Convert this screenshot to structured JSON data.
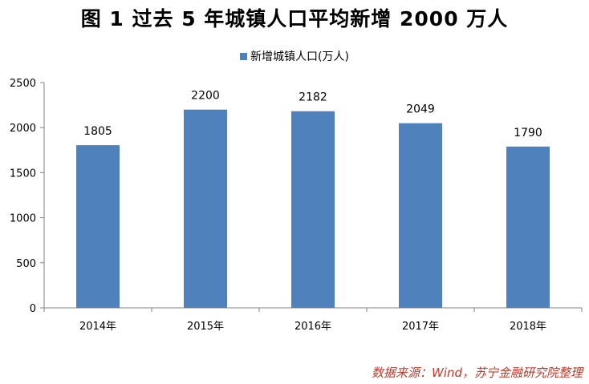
{
  "title": "图 1  过去 5 年城镇人口平均新增 2000 万人",
  "source": "数据来源：Wind，苏宁金融研究院整理",
  "colors": {
    "bar": "#4F81BD",
    "axis": "#808080",
    "source_text": "#C0392B"
  },
  "chart_data": {
    "type": "bar",
    "categories": [
      "2014年",
      "2015年",
      "2016年",
      "2017年",
      "2018年"
    ],
    "series": [
      {
        "name": "新增城镇人口(万人)",
        "values": [
          1805,
          2200,
          2182,
          2049,
          1790
        ]
      }
    ],
    "ylim": [
      0,
      2500
    ],
    "yticks": [
      0,
      500,
      1000,
      1500,
      2000,
      2500
    ],
    "grid": false,
    "legend_position": "top-center",
    "data_labels": true
  }
}
